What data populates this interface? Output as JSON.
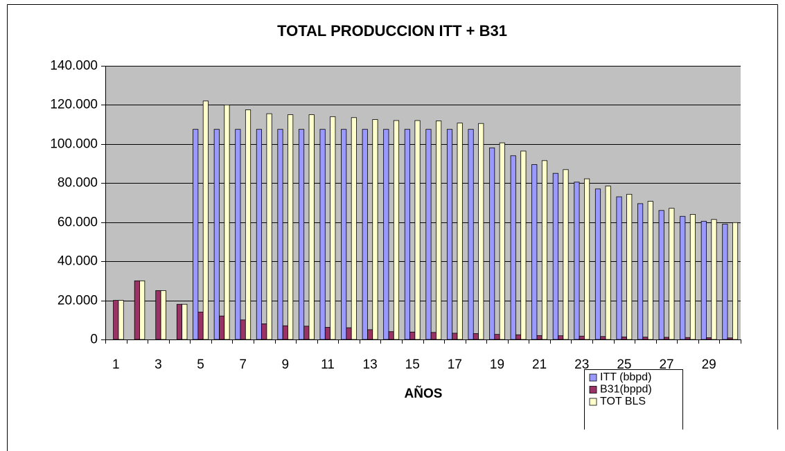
{
  "chart_data": {
    "type": "bar",
    "title": "TOTAL PRODUCCION ITT + B31",
    "x_label": "AÑOS",
    "categories": [
      "1",
      null,
      "3",
      null,
      "5",
      null,
      "7",
      null,
      "9",
      null,
      "11",
      null,
      "13",
      null,
      "15",
      null,
      "17",
      null,
      "19",
      null,
      "21",
      null,
      "23",
      null,
      "25",
      null,
      "27",
      null,
      "29",
      null
    ],
    "series": [
      {
        "name": "ITT (bbpd)",
        "color": "#9999ff",
        "values": [
          0,
          0,
          0,
          0,
          107500,
          107500,
          107500,
          107500,
          107500,
          107500,
          107500,
          107500,
          107500,
          107500,
          107500,
          107500,
          107500,
          107500,
          98000,
          94000,
          89500,
          85000,
          80500,
          77000,
          73000,
          69500,
          66000,
          63000,
          60500,
          59000
        ]
      },
      {
        "name": "B31(bppd)",
        "color": "#993366",
        "values": [
          20000,
          30000,
          25000,
          18000,
          14000,
          12000,
          10000,
          8000,
          7000,
          6800,
          6200,
          6000,
          5000,
          4000,
          3800,
          3600,
          3200,
          3000,
          2600,
          2400,
          2000,
          1900,
          1700,
          1500,
          1300,
          1200,
          1100,
          1000,
          900,
          800
        ]
      },
      {
        "name": "TOT BLS",
        "color": "#ffffcc",
        "values": [
          20000,
          30000,
          25000,
          18000,
          122000,
          120000,
          117500,
          115500,
          115000,
          115000,
          114000,
          113500,
          112500,
          112000,
          112000,
          111800,
          110700,
          110500,
          100600,
          96400,
          91500,
          86900,
          82200,
          78500,
          74300,
          70700,
          67100,
          64000,
          61400,
          59800
        ]
      }
    ],
    "ylim": [
      0,
      140000
    ],
    "yticks": [
      0,
      {
        "value": 20000,
        "label": "20.000"
      },
      {
        "value": 40000,
        "label": "40.000"
      },
      {
        "value": 60000,
        "label": "60.000"
      },
      {
        "value": 80000,
        "label": "80.000"
      },
      {
        "value": 100000,
        "label": "100.000"
      },
      {
        "value": 120000,
        "label": "120.000"
      },
      {
        "value": 140000,
        "label": "140.000"
      }
    ],
    "grid": true,
    "plot_background": "#c0c0c0",
    "legend": "bottom-right"
  }
}
